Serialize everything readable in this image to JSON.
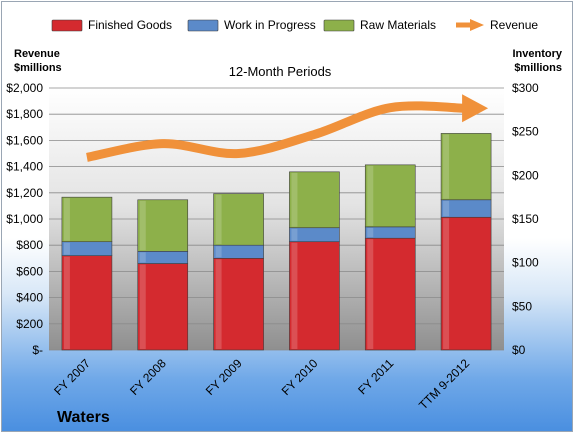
{
  "chart_data": {
    "type": "bar",
    "stacked": true,
    "subtitle": "12-Month Periods",
    "company": "Waters",
    "left_axis_label": [
      "Revenue",
      "$millions"
    ],
    "right_axis_label": [
      "Inventory",
      "$millions"
    ],
    "categories": [
      "FY 2007",
      "FY 2008",
      "FY 2009",
      "FY 2010",
      "FY 2011",
      "TTM 9-2012"
    ],
    "left_ylim": [
      0,
      2000
    ],
    "right_ylim": [
      0,
      300
    ],
    "left_ticks": [
      "$-",
      "$200",
      "$400",
      "$600",
      "$800",
      "$1,000",
      "$1,200",
      "$1,400",
      "$1,600",
      "$1,800",
      "$2,000"
    ],
    "right_ticks": [
      "$0",
      "$50",
      "$100",
      "$150",
      "$200",
      "$250",
      "$300"
    ],
    "series": [
      {
        "name": "Finished Goods",
        "axis": "right",
        "color": "#d42a2f",
        "values": [
          108,
          99,
          105,
          124,
          128,
          152
        ]
      },
      {
        "name": "Work in Progress",
        "axis": "right",
        "color": "#5b8ac9",
        "values": [
          16,
          14,
          15,
          16,
          13,
          20
        ]
      },
      {
        "name": "Raw Materials",
        "axis": "right",
        "color": "#8db04a",
        "values": [
          51,
          59,
          59,
          64,
          71,
          76
        ]
      },
      {
        "name": "Revenue",
        "axis": "left",
        "type": "line",
        "color": "#f0913a",
        "values": [
          1470,
          1575,
          1500,
          1645,
          1850,
          1845
        ]
      }
    ],
    "grid": true,
    "legend_position": "top"
  }
}
